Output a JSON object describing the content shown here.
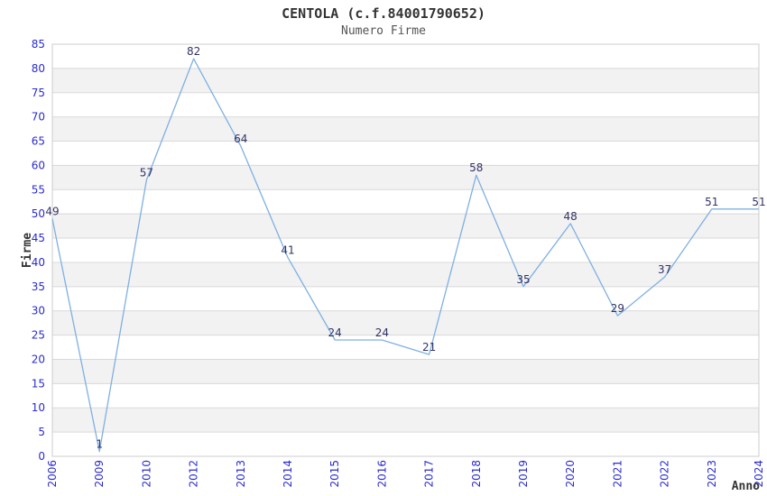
{
  "chart": {
    "title": "CENTOLA (c.f.84001790652)",
    "subtitle": "Numero Firme"
  },
  "chart_data": {
    "type": "line",
    "title": "CENTOLA (c.f.84001790652)",
    "subtitle": "Numero Firme",
    "categories": [
      "2006",
      "2009",
      "2010",
      "2012",
      "2013",
      "2014",
      "2015",
      "2016",
      "2017",
      "2018",
      "2019",
      "2020",
      "2021",
      "2022",
      "2023",
      "2024"
    ],
    "values": [
      49,
      1,
      57,
      82,
      64,
      41,
      24,
      24,
      21,
      58,
      35,
      48,
      29,
      37,
      51,
      51
    ],
    "xlabel": "Anno",
    "ylabel": "Firme",
    "ylim": [
      0,
      85
    ],
    "ytick_step": 5,
    "grid": "horizontal-bands",
    "legend": "none",
    "colors": {
      "line": "#7fb0e2",
      "tick_label": "#2b2bd0",
      "data_label": "#333366",
      "band_fill": "#f2f2f2",
      "gridline": "#d9d9d9",
      "plot_border": "#cccccc",
      "title": "#333333",
      "subtitle": "#555555",
      "axis_title": "#333333",
      "background": "#ffffff"
    }
  }
}
